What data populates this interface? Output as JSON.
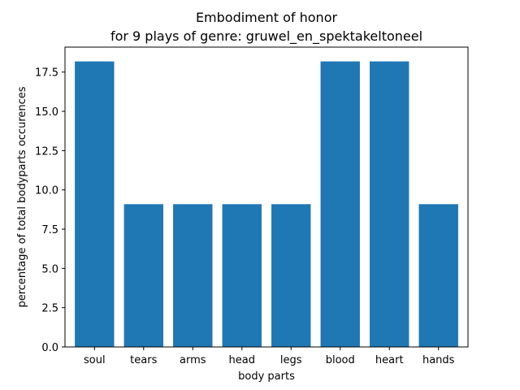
{
  "chart_data": {
    "type": "bar",
    "title": "Embodiment of honor",
    "subtitle": "for 9 plays of genre: gruwel_en_spektakeltoneel",
    "xlabel": "body parts",
    "ylabel": "percentage of total bodyparts occurences",
    "categories": [
      "soul",
      "tears",
      "arms",
      "head",
      "legs",
      "blood",
      "heart",
      "hands"
    ],
    "values": [
      18.18,
      9.09,
      9.09,
      9.09,
      9.09,
      18.18,
      18.18,
      9.09
    ],
    "ylim": [
      0,
      19.09
    ],
    "yticks": [
      "0.0",
      "2.5",
      "5.0",
      "7.5",
      "10.0",
      "12.5",
      "15.0",
      "17.5"
    ],
    "bar_color": "#1f77b4",
    "grid": false,
    "legend": "none"
  }
}
